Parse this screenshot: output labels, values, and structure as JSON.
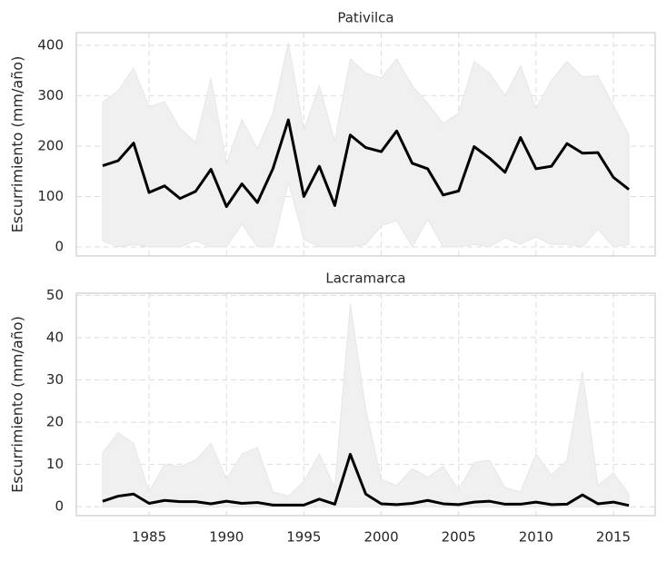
{
  "chart_data": [
    {
      "type": "line",
      "title": "Pativilca",
      "ylabel": "Escurrimiento (mm/año)",
      "x": [
        1982,
        1983,
        1984,
        1985,
        1986,
        1987,
        1988,
        1989,
        1990,
        1991,
        1992,
        1993,
        1994,
        1995,
        1996,
        1997,
        1998,
        1999,
        2000,
        2001,
        2002,
        2003,
        2004,
        2005,
        2006,
        2007,
        2008,
        2009,
        2010,
        2011,
        2012,
        2013,
        2014,
        2015,
        2016
      ],
      "series": [
        {
          "color": "#000000",
          "values": [
            161,
            171,
            206,
            108,
            121,
            96,
            110,
            154,
            80,
            125,
            88,
            155,
            252,
            100,
            160,
            82,
            222,
            197,
            189,
            230,
            166,
            155,
            103,
            111,
            199,
            176,
            148,
            217,
            155,
            160,
            205,
            186,
            187,
            138,
            114
          ]
        }
      ],
      "band": {
        "color": "#f0f0f0",
        "upper": [
          287,
          310,
          355,
          278,
          288,
          235,
          207,
          335,
          165,
          253,
          195,
          265,
          405,
          232,
          320,
          210,
          373,
          345,
          335,
          373,
          320,
          285,
          245,
          265,
          368,
          345,
          300,
          360,
          275,
          330,
          368,
          337,
          340,
          280,
          222
        ],
        "lower": [
          12,
          0,
          5,
          0,
          0,
          0,
          12,
          0,
          0,
          45,
          0,
          0,
          128,
          15,
          0,
          0,
          0,
          5,
          42,
          52,
          0,
          55,
          0,
          0,
          5,
          0,
          18,
          5,
          20,
          5,
          5,
          0,
          35,
          0,
          5
        ]
      },
      "xlim": [
        1980.3,
        2017.7
      ],
      "xticks": [
        1985,
        1990,
        1995,
        2000,
        2005,
        2010,
        2015
      ],
      "xticklabels": false,
      "ylim": [
        -18,
        425
      ],
      "yticks": [
        0,
        100,
        200,
        300,
        400
      ],
      "grid": true
    },
    {
      "type": "line",
      "title": "Lacramarca",
      "ylabel": "Escurrimiento (mm/año)",
      "x": [
        1982,
        1983,
        1984,
        1985,
        1986,
        1987,
        1988,
        1989,
        1990,
        1991,
        1992,
        1993,
        1994,
        1995,
        1996,
        1997,
        1998,
        1999,
        2000,
        2001,
        2002,
        2003,
        2004,
        2005,
        2006,
        2007,
        2008,
        2009,
        2010,
        2011,
        2012,
        2013,
        2014,
        2015,
        2016
      ],
      "series": [
        {
          "color": "#000000",
          "values": [
            1.3,
            2.5,
            3,
            0.8,
            1.5,
            1.2,
            1.2,
            0.7,
            1.3,
            0.8,
            1,
            0.4,
            0.4,
            0.4,
            1.8,
            0.6,
            12.4,
            3,
            0.7,
            0.5,
            0.8,
            1.5,
            0.7,
            0.5,
            1.1,
            1.3,
            0.6,
            0.6,
            1.1,
            0.5,
            0.6,
            2.8,
            0.7,
            1.1,
            0.3
          ]
        }
      ],
      "band": {
        "color": "#f0f0f0",
        "upper": [
          12.8,
          17.5,
          15,
          3.5,
          10,
          9.5,
          11,
          15,
          6.5,
          12.5,
          14,
          3.5,
          2.5,
          6,
          12.5,
          4.5,
          48,
          23,
          6.5,
          5,
          9,
          7,
          9.5,
          4,
          10.5,
          11,
          4.5,
          3.5,
          12.5,
          7.5,
          11,
          32,
          5,
          8,
          3
        ],
        "lower": [
          0,
          0,
          0,
          0,
          0,
          0,
          0,
          0,
          0,
          0,
          0,
          0,
          0,
          0,
          0,
          0,
          0,
          0,
          0,
          0,
          0,
          0,
          0,
          0,
          0,
          0,
          0,
          0,
          0,
          0,
          0,
          0,
          0,
          0,
          0
        ]
      },
      "xlim": [
        1980.3,
        2017.7
      ],
      "xticks": [
        1985,
        1990,
        1995,
        2000,
        2005,
        2010,
        2015
      ],
      "xticklabels": true,
      "ylim": [
        -2.1,
        50.5
      ],
      "yticks": [
        0,
        10,
        20,
        30,
        40,
        50
      ],
      "grid": true
    }
  ]
}
